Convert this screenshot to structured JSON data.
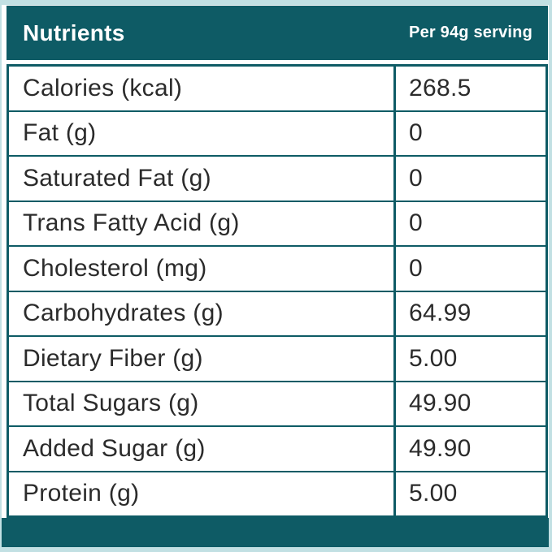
{
  "chart_data": {
    "type": "table",
    "title": "Nutrients",
    "serving_text": "Per 94g serving",
    "serving_size_g": 94,
    "columns": [
      "Nutrients",
      "Per 94g serving"
    ],
    "rows": [
      {
        "label": "Calories (kcal)",
        "value": "268.5"
      },
      {
        "label": "Fat (g)",
        "value": "0"
      },
      {
        "label": "Saturated Fat (g)",
        "value": "0"
      },
      {
        "label": "Trans Fatty Acid (g)",
        "value": "0"
      },
      {
        "label": "Cholesterol (mg)",
        "value": "0"
      },
      {
        "label": "Carbohydrates (g)",
        "value": "64.99"
      },
      {
        "label": "Dietary Fiber (g)",
        "value": "5.00"
      },
      {
        "label": "Total Sugars (g)",
        "value": "49.90"
      },
      {
        "label": "Added Sugar (g)",
        "value": "49.90"
      },
      {
        "label": "Protein (g)",
        "value": "5.00"
      }
    ]
  },
  "colors": {
    "accent": "#0e5b65",
    "edge": "#c2e0e3",
    "text": "#2b2b2b",
    "header_text": "#ffffff",
    "cell_bg": "#ffffff"
  }
}
